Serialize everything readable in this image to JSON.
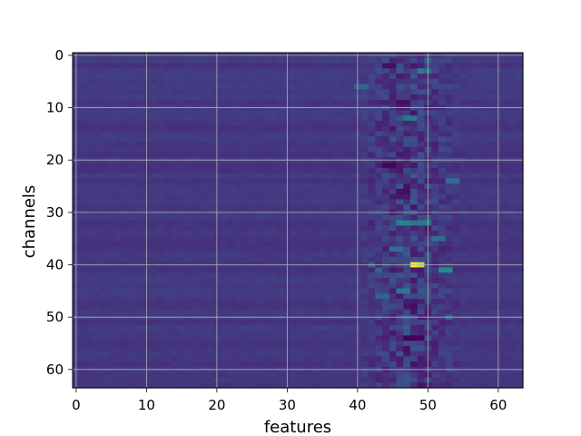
{
  "chart_data": {
    "type": "heatmap",
    "xlabel": "features",
    "ylabel": "channels",
    "shape": [
      64,
      64
    ],
    "xlim": [
      -0.5,
      63.5
    ],
    "ylim": [
      63.5,
      -0.5
    ],
    "y_axis_inverted": true,
    "xticks": [
      0,
      10,
      20,
      30,
      40,
      50,
      60
    ],
    "yticks": [
      0,
      10,
      20,
      30,
      40,
      50,
      60
    ],
    "grid": true,
    "colormap": "viridis",
    "background_level": 0.2,
    "noise_region_columns": [
      40,
      55
    ],
    "hotspots": [
      {
        "row": 40,
        "col": 48,
        "value": 1.0
      },
      {
        "row": 40,
        "col": 49,
        "value": 0.95
      },
      {
        "row": 41,
        "col": 52,
        "value": 0.6
      },
      {
        "row": 41,
        "col": 53,
        "value": 0.6
      },
      {
        "row": 32,
        "col": 46,
        "value": 0.55
      },
      {
        "row": 32,
        "col": 47,
        "value": 0.55
      },
      {
        "row": 32,
        "col": 48,
        "value": 0.5
      },
      {
        "row": 32,
        "col": 49,
        "value": 0.5
      },
      {
        "row": 32,
        "col": 50,
        "value": 0.5
      },
      {
        "row": 12,
        "col": 47,
        "value": 0.5
      },
      {
        "row": 12,
        "col": 48,
        "value": 0.5
      },
      {
        "row": 3,
        "col": 49,
        "value": 0.5
      },
      {
        "row": 3,
        "col": 50,
        "value": 0.45
      },
      {
        "row": 45,
        "col": 46,
        "value": 0.5
      },
      {
        "row": 45,
        "col": 47,
        "value": 0.5
      },
      {
        "row": 37,
        "col": 45,
        "value": 0.45
      },
      {
        "row": 37,
        "col": 46,
        "value": 0.45
      },
      {
        "row": 24,
        "col": 53,
        "value": 0.45
      },
      {
        "row": 24,
        "col": 54,
        "value": 0.45
      },
      {
        "row": 35,
        "col": 51,
        "value": 0.45
      },
      {
        "row": 35,
        "col": 52,
        "value": 0.45
      },
      {
        "row": 6,
        "col": 40,
        "value": 0.42
      },
      {
        "row": 6,
        "col": 41,
        "value": 0.42
      },
      {
        "row": 1,
        "col": 50,
        "value": 0.4
      },
      {
        "row": 40,
        "col": 42,
        "value": 0.4
      },
      {
        "row": 41,
        "col": 43,
        "value": 0.4
      },
      {
        "row": 46,
        "col": 43,
        "value": 0.4
      },
      {
        "row": 46,
        "col": 44,
        "value": 0.4
      },
      {
        "row": 50,
        "col": 53,
        "value": 0.4
      },
      {
        "row": 54,
        "col": 47,
        "value": 0.0
      },
      {
        "row": 54,
        "col": 48,
        "value": 0.0
      },
      {
        "row": 54,
        "col": 49,
        "value": 0.02
      },
      {
        "row": 21,
        "col": 44,
        "value": 0.02
      },
      {
        "row": 21,
        "col": 45,
        "value": 0.02
      },
      {
        "row": 26,
        "col": 46,
        "value": 0.05
      },
      {
        "row": 26,
        "col": 47,
        "value": 0.05
      },
      {
        "row": 2,
        "col": 44,
        "value": 0.05
      },
      {
        "row": 2,
        "col": 45,
        "value": 0.05
      },
      {
        "row": 57,
        "col": 47,
        "value": 0.08
      },
      {
        "row": 30,
        "col": 45,
        "value": 0.08
      }
    ]
  }
}
